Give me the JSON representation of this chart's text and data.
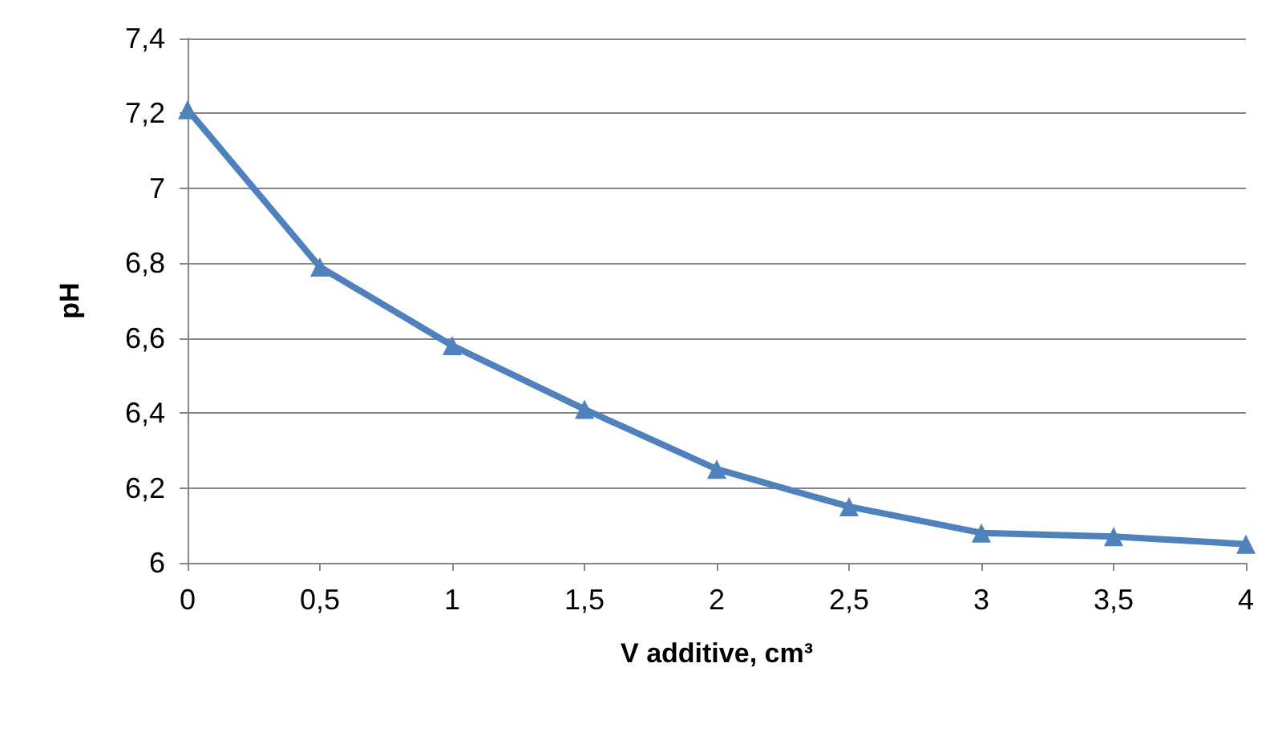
{
  "chart_data": {
    "type": "line",
    "xlabel": "V additive, cm³",
    "ylabel": "pH",
    "x": [
      0,
      0.5,
      1,
      1.5,
      2,
      2.5,
      3,
      3.5,
      4
    ],
    "series": [
      {
        "color": "#4f81bd",
        "values": [
          7.21,
          6.79,
          6.58,
          6.41,
          6.25,
          6.15,
          6.08,
          6.07,
          6.05
        ]
      }
    ],
    "xlim": [
      0,
      4
    ],
    "xticks": [
      0,
      {
        "value": 0.5,
        "label": "0,5"
      },
      1,
      {
        "value": 1.5,
        "label": "1,5"
      },
      2,
      {
        "value": 2.5,
        "label": "2,5"
      },
      3,
      {
        "value": 3.5,
        "label": "3,5"
      },
      4
    ],
    "ylim": [
      6,
      7.4
    ],
    "yticks": [
      6,
      {
        "value": 6.2,
        "label": "6,2"
      },
      {
        "value": 6.4,
        "label": "6,4"
      },
      {
        "value": 6.6,
        "label": "6,6"
      },
      {
        "value": 6.8,
        "label": "6,8"
      },
      7,
      {
        "value": 7.2,
        "label": "7,2"
      },
      {
        "value": 7.4,
        "label": "7,4"
      }
    ],
    "grid": "y",
    "marker": "triangle",
    "line_style": "solid"
  }
}
